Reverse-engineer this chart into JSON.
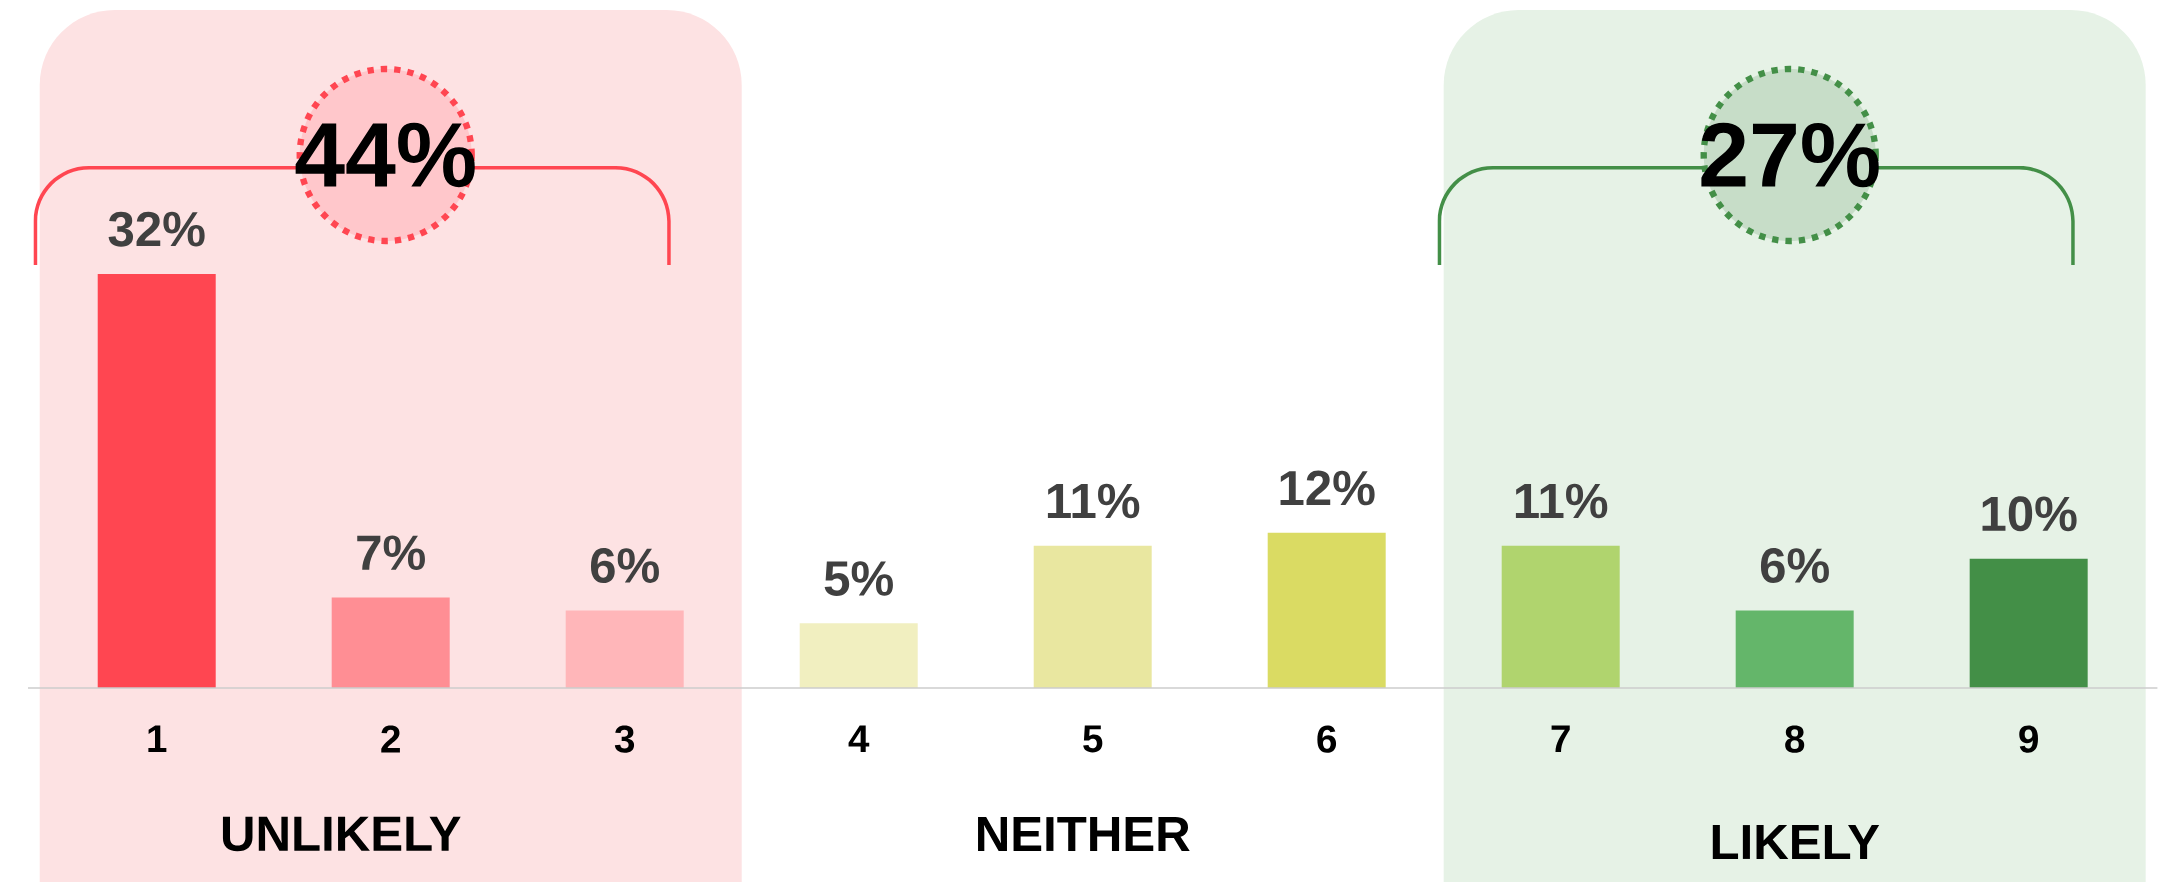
{
  "chart_data": {
    "type": "bar",
    "categories": [
      "1",
      "2",
      "3",
      "4",
      "5",
      "6",
      "7",
      "8",
      "9"
    ],
    "values": [
      32,
      7,
      6,
      5,
      11,
      12,
      11,
      6,
      10
    ],
    "colors": [
      "#ff4651",
      "#ff8e94",
      "#ffb6b9",
      "#f1efc0",
      "#e9e7a0",
      "#dadb63",
      "#b0d46e",
      "#64b66a",
      "#438f47"
    ],
    "value_labels": [
      "32%",
      "7%",
      "6%",
      "5%",
      "11%",
      "12%",
      "11%",
      "6%",
      "10%"
    ],
    "tick_labels": "x",
    "bands": [
      {
        "axis": "x",
        "from": "1",
        "to": "3",
        "label": "UNLIKELY",
        "color": "#fde2e3"
      },
      {
        "axis": "x",
        "from": "7",
        "to": "9",
        "label": "LIKELY",
        "color": "#e6f2e6"
      }
    ],
    "annotations": [
      "44%",
      "NEITHER",
      "27%"
    ]
  }
}
